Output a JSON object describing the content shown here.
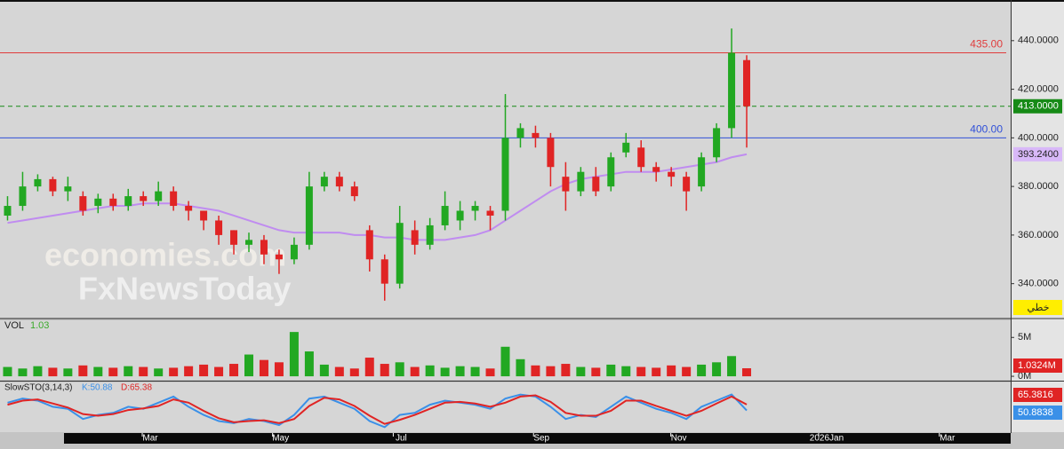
{
  "chart_data": {
    "type": "candlestick",
    "watermark": [
      "economies.com",
      "FxNewsToday"
    ],
    "xlim": [
      0,
      67
    ],
    "xticks": [
      {
        "value": 9.96,
        "label": "Mar"
      },
      {
        "value": 18.6,
        "label": "May"
      },
      {
        "value": 26.6,
        "label": "Jul"
      },
      {
        "value": 35.9,
        "label": "Sep"
      },
      {
        "value": 45.0,
        "label": "Nov"
      },
      {
        "value": 54.8,
        "label": "2026Jan"
      },
      {
        "value": 62.8,
        "label": "Mar"
      }
    ],
    "ylim": [
      326,
      456
    ],
    "yticks": [
      {
        "value": 340,
        "label": "340.0000"
      },
      {
        "value": 360,
        "label": "360.0000"
      },
      {
        "value": 380,
        "label": "380.0000"
      },
      {
        "value": 400,
        "label": "400.0000"
      },
      {
        "value": 420,
        "label": "420.0000"
      },
      {
        "value": 440,
        "label": "440.0000"
      }
    ],
    "up_color": "#22a822",
    "down_color": "#e02424",
    "open": [
      368,
      372,
      380,
      383,
      378,
      376,
      372,
      375,
      372,
      376,
      374,
      378,
      372,
      370,
      366,
      362,
      356,
      358,
      352,
      350,
      356,
      380,
      384,
      380,
      362,
      350,
      340,
      362,
      356,
      364,
      366,
      370,
      370,
      370,
      400,
      402,
      400,
      384,
      378,
      384,
      380,
      394,
      396,
      388,
      386,
      384,
      380,
      392,
      404,
      432
    ],
    "high": [
      376,
      386,
      385,
      384,
      384,
      378,
      377,
      377,
      379,
      378,
      382,
      380,
      374,
      370,
      368,
      362,
      361,
      360,
      354,
      359,
      386,
      386,
      386,
      382,
      364,
      352,
      372,
      366,
      367,
      378,
      374,
      374,
      372,
      418,
      406,
      405,
      402,
      390,
      388,
      388,
      394,
      402,
      399,
      390,
      388,
      386,
      394,
      406,
      445,
      434
    ],
    "low": [
      366,
      370,
      378,
      376,
      374,
      368,
      369,
      370,
      370,
      372,
      372,
      370,
      366,
      362,
      356,
      352,
      353,
      348,
      344,
      348,
      354,
      378,
      378,
      374,
      345,
      333,
      338,
      352,
      354,
      362,
      362,
      366,
      362,
      366,
      396,
      396,
      380,
      370,
      376,
      376,
      378,
      392,
      386,
      382,
      380,
      370,
      378,
      390,
      400,
      396
    ],
    "close": [
      372,
      380,
      383,
      378,
      380,
      370,
      375,
      372,
      376,
      374,
      378,
      372,
      370,
      366,
      360,
      356,
      358,
      352,
      350,
      356,
      380,
      384,
      380,
      376,
      350,
      340,
      365,
      356,
      364,
      372,
      370,
      372,
      368,
      400,
      404,
      400,
      388,
      378,
      386,
      378,
      392,
      398,
      388,
      386,
      384,
      378,
      392,
      404,
      435,
      413
    ],
    "ma": {
      "color": "#c08cf0",
      "values": [
        365,
        366,
        367,
        368,
        369,
        370,
        371,
        372,
        372,
        373,
        373,
        373,
        372,
        371,
        370,
        368,
        366,
        364,
        362,
        361,
        361,
        361,
        361,
        360,
        360,
        359,
        359,
        358,
        358,
        358,
        359,
        360,
        362,
        366,
        370,
        374,
        378,
        381,
        383,
        384,
        385,
        386,
        386,
        386,
        387,
        388,
        389,
        390,
        392,
        393.24
      ],
      "last_label": "393.2400"
    },
    "levels": [
      {
        "value": 435,
        "label": "435.00",
        "color": "#e03c3c"
      },
      {
        "value": 400,
        "label": "400.00",
        "color": "#3050d8"
      }
    ],
    "last_price": {
      "value": 413,
      "label": "413.0000",
      "color": "#168a16"
    },
    "badge": "خطي",
    "volume": {
      "label": "VOL",
      "header_value": "1.03",
      "ylim": [
        -0.45,
        7.2
      ],
      "yticks": [
        {
          "value": 5,
          "label": "5M"
        },
        {
          "value": 0,
          "label": "0M"
        }
      ],
      "values": [
        1.2,
        1.0,
        1.3,
        1.1,
        1.0,
        1.4,
        1.2,
        1.1,
        1.3,
        1.2,
        1.0,
        1.1,
        1.3,
        1.5,
        1.2,
        1.6,
        2.8,
        2.1,
        1.8,
        5.7,
        3.2,
        1.5,
        1.2,
        1.0,
        2.4,
        1.6,
        1.8,
        1.2,
        1.4,
        1.1,
        1.3,
        1.2,
        1.0,
        3.8,
        2.2,
        1.4,
        1.3,
        1.6,
        1.2,
        1.1,
        1.5,
        1.3,
        1.2,
        1.1,
        1.4,
        1.2,
        1.5,
        1.8,
        2.6,
        1.0324
      ],
      "last_label": "1.0324M"
    },
    "stochastic": {
      "title": "SlowSTO(3,14,3)",
      "ylim": [
        0,
        100
      ],
      "k": {
        "name": "K:50.88",
        "color": "#3a90e8",
        "values": [
          70,
          80,
          75,
          60,
          55,
          30,
          40,
          45,
          60,
          55,
          70,
          85,
          60,
          40,
          25,
          20,
          30,
          25,
          15,
          40,
          80,
          85,
          70,
          55,
          25,
          10,
          40,
          45,
          65,
          75,
          70,
          65,
          55,
          80,
          90,
          85,
          60,
          30,
          40,
          35,
          60,
          85,
          70,
          55,
          45,
          30,
          60,
          75,
          90,
          50.8838
        ],
        "last_label": "50.8838"
      },
      "d": {
        "name": "D:65.38",
        "color": "#e02424",
        "values": [
          65,
          75,
          78,
          68,
          58,
          42,
          38,
          42,
          52,
          56,
          62,
          78,
          70,
          50,
          32,
          22,
          25,
          27,
          20,
          30,
          62,
          82,
          78,
          62,
          38,
          18,
          28,
          40,
          55,
          70,
          72,
          68,
          60,
          70,
          85,
          88,
          72,
          45,
          38,
          38,
          50,
          75,
          75,
          62,
          50,
          38,
          50,
          68,
          85,
          65.3816
        ],
        "last_label": "65.3816"
      }
    }
  }
}
